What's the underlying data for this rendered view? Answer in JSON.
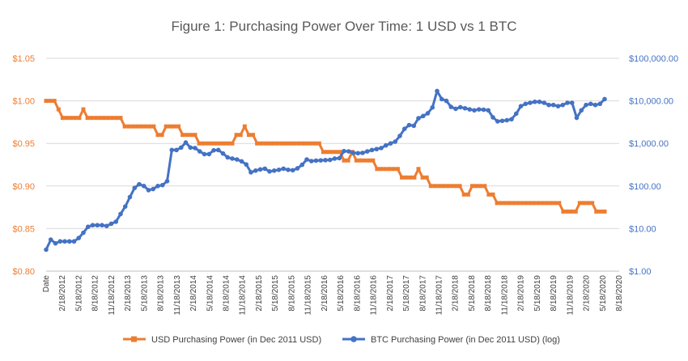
{
  "chart_data": {
    "type": "line",
    "title": "Figure 1: Purchasing Power Over Time: 1 USD vs 1 BTC",
    "xlabel": "",
    "ylabel": "",
    "y_left": {
      "min": 0.8,
      "max": 1.05,
      "step": 0.05,
      "tick_labels": [
        "$0.80",
        "$0.85",
        "$0.90",
        "$0.95",
        "$1.00",
        "$1.05"
      ]
    },
    "y_right": {
      "scale": "log",
      "min": 1,
      "max": 100000,
      "tick_labels": [
        "$1.00",
        "$10.00",
        "$100.00",
        "$1,000.00",
        "$10,000.00",
        "$100,000.00"
      ]
    },
    "x_tick_labels": [
      "Date",
      "2/18/2012",
      "5/18/2012",
      "8/18/2012",
      "11/18/2012",
      "2/18/2013",
      "5/18/2013",
      "8/18/2013",
      "11/18/2013",
      "2/18/2014",
      "5/18/2014",
      "8/18/2014",
      "11/18/2014",
      "2/18/2015",
      "5/18/2015",
      "8/18/2015",
      "11/18/2015",
      "2/18/2016",
      "5/18/2016",
      "8/18/2016",
      "11/18/2016",
      "2/18/2017",
      "5/18/2017",
      "8/18/2017",
      "11/18/2017",
      "2/18/2018",
      "5/18/2018",
      "8/18/2018",
      "11/18/2018",
      "2/18/2019",
      "5/18/2019",
      "8/18/2019",
      "11/18/2019",
      "2/18/2020",
      "5/18/2020",
      "8/18/2020"
    ],
    "series": [
      {
        "name": "USD Purchasing Power (in Dec 2011 USD)",
        "axis": "left",
        "color": "#ed7d31",
        "marker": "square",
        "values": [
          1.0,
          1.0,
          1.0,
          0.99,
          0.98,
          0.98,
          0.98,
          0.98,
          0.98,
          0.99,
          0.98,
          0.98,
          0.98,
          0.98,
          0.98,
          0.98,
          0.98,
          0.98,
          0.98,
          0.97,
          0.97,
          0.97,
          0.97,
          0.97,
          0.97,
          0.97,
          0.97,
          0.96,
          0.96,
          0.97,
          0.97,
          0.97,
          0.97,
          0.96,
          0.96,
          0.96,
          0.96,
          0.95,
          0.95,
          0.95,
          0.95,
          0.95,
          0.95,
          0.95,
          0.95,
          0.95,
          0.96,
          0.96,
          0.97,
          0.96,
          0.96,
          0.95,
          0.95,
          0.95,
          0.95,
          0.95,
          0.95,
          0.95,
          0.95,
          0.95,
          0.95,
          0.95,
          0.95,
          0.95,
          0.95,
          0.95,
          0.95,
          0.94,
          0.94,
          0.94,
          0.94,
          0.94,
          0.93,
          0.93,
          0.94,
          0.93,
          0.93,
          0.93,
          0.93,
          0.93,
          0.92,
          0.92,
          0.92,
          0.92,
          0.92,
          0.92,
          0.91,
          0.91,
          0.91,
          0.91,
          0.92,
          0.91,
          0.91,
          0.9,
          0.9,
          0.9,
          0.9,
          0.9,
          0.9,
          0.9,
          0.9,
          0.89,
          0.89,
          0.9,
          0.9,
          0.9,
          0.9,
          0.89,
          0.89,
          0.88,
          0.88,
          0.88,
          0.88,
          0.88,
          0.88,
          0.88,
          0.88,
          0.88,
          0.88,
          0.88,
          0.88,
          0.88,
          0.88,
          0.88,
          0.88,
          0.87,
          0.87,
          0.87,
          0.87,
          0.88,
          0.88,
          0.88,
          0.88,
          0.87,
          0.87,
          0.87
        ]
      },
      {
        "name": "BTC Purchasing Power (in Dec 2011 USD) (log)",
        "axis": "right",
        "color": "#4472c4",
        "marker": "circle",
        "values": [
          3.2,
          5.5,
          4.5,
          5.0,
          5.0,
          5.0,
          5.0,
          6.0,
          8.0,
          11.0,
          12.0,
          12.0,
          12.0,
          11.5,
          13.0,
          14.5,
          22.0,
          33.0,
          55.0,
          90.0,
          110.0,
          100.0,
          80.0,
          85.0,
          100.0,
          105.0,
          130.0,
          700.0,
          700.0,
          800.0,
          1050.0,
          800.0,
          780.0,
          650.0,
          560.0,
          560.0,
          690.0,
          700.0,
          580.0,
          470.0,
          440.0,
          420.0,
          380.0,
          320.0,
          210.0,
          230.0,
          245.0,
          255.0,
          220.0,
          230.0,
          240.0,
          255.0,
          240.0,
          235.0,
          260.0,
          315.0,
          420.0,
          385.0,
          395.0,
          400.0,
          405.0,
          410.0,
          440.0,
          450.0,
          660.0,
          650.0,
          600.0,
          590.0,
          600.0,
          650.0,
          700.0,
          735.0,
          780.0,
          900.0,
          1000.0,
          1100.0,
          1500.0,
          2200.0,
          2700.0,
          2600.0,
          3900.0,
          4400.0,
          5100.0,
          7000.0,
          17000.0,
          11000.0,
          10000.0,
          7200.0,
          6500.0,
          7100.0,
          6700.0,
          6300.0,
          6000.0,
          6300.0,
          6200.0,
          6000.0,
          4100.0,
          3300.0,
          3400.0,
          3500.0,
          3700.0,
          5000.0,
          7500.0,
          8500.0,
          9000.0,
          9500.0,
          9500.0,
          9000.0,
          8000.0,
          8000.0,
          7500.0,
          8000.0,
          9000.0,
          9000.0,
          4000.0,
          6000.0,
          8000.0,
          8500.0,
          8000.0,
          8500.0,
          11000.0
        ]
      }
    ],
    "grid": true,
    "legend_position": "bottom"
  }
}
